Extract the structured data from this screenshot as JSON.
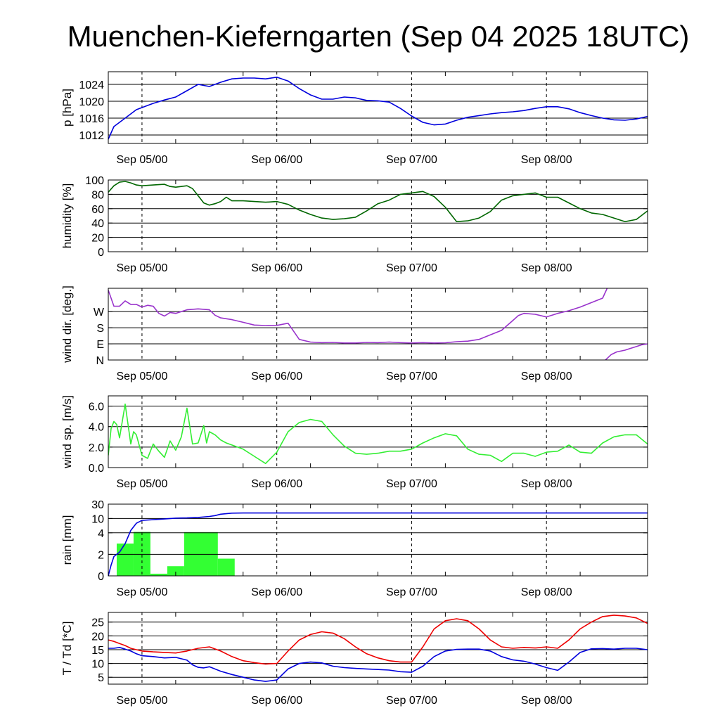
{
  "title": "Muenchen-Kieferngarten (Sep 04 2025 18UTC)",
  "colors": {
    "pressure": "#0000dd",
    "humidity": "#006600",
    "wind_dir": "#9933cc",
    "wind_speed": "#33ee33",
    "rain_bar": "#33ff33",
    "rain_cum": "#0000dd",
    "temperature": "#ee0000",
    "dewpoint": "#0000dd"
  },
  "chart_data": [
    {
      "type": "line",
      "ylabel": "p [hPa]",
      "x_unit": "hours after Sep 04 18UTC",
      "xlim": [
        0,
        96
      ],
      "ylim": [
        1010,
        1027
      ],
      "grid_values": [
        1012,
        1016,
        1020,
        1024
      ],
      "yticks": [
        {
          "v": 1012,
          "label": "1012"
        },
        {
          "v": 1016,
          "label": "1016"
        },
        {
          "v": 1020,
          "label": "1020"
        },
        {
          "v": 1024,
          "label": "1024"
        }
      ],
      "xtick_labels": [
        "Sep 05/00",
        "Sep 06/00",
        "Sep 07/00",
        "Sep 08/00"
      ],
      "series": [
        {
          "key": "pressure",
          "x": [
            0,
            1,
            2,
            3,
            4,
            5,
            6,
            8,
            10,
            12,
            14,
            16,
            18,
            20,
            22,
            24,
            26,
            28,
            30,
            32,
            34,
            36,
            38,
            40,
            42,
            44,
            46,
            48,
            50,
            52,
            54,
            56,
            58,
            60,
            62,
            64,
            66,
            68,
            70,
            72,
            74,
            76,
            78,
            80,
            82,
            84,
            86,
            88,
            90,
            92,
            94,
            96
          ],
          "y": [
            1011,
            1014,
            1015,
            1016,
            1017,
            1018,
            1018.5,
            1019.5,
            1020.3,
            1021,
            1022.5,
            1024,
            1023.5,
            1024.5,
            1025.3,
            1025.5,
            1025.5,
            1025.3,
            1025.7,
            1024.8,
            1023,
            1021.5,
            1020.5,
            1020.5,
            1021,
            1020.8,
            1020.2,
            1020.1,
            1019.8,
            1018.3,
            1016.5,
            1015,
            1014.4,
            1014.6,
            1015.5,
            1016.2,
            1016.6,
            1017,
            1017.3,
            1017.5,
            1017.8,
            1018.3,
            1018.7,
            1018.7,
            1018.2,
            1017.3,
            1016.6,
            1016,
            1015.6,
            1015.5,
            1015.8,
            1016.4
          ]
        }
      ]
    },
    {
      "type": "line",
      "ylabel": "humidity [%]",
      "x_unit": "hours after Sep 04 18UTC",
      "xlim": [
        0,
        96
      ],
      "ylim": [
        0,
        100
      ],
      "grid_values": [
        20,
        40,
        60,
        80
      ],
      "yticks": [
        {
          "v": 0,
          "label": "0"
        },
        {
          "v": 20,
          "label": "20"
        },
        {
          "v": 40,
          "label": "40"
        },
        {
          "v": 60,
          "label": "60"
        },
        {
          "v": 80,
          "label": "80"
        },
        {
          "v": 100,
          "label": "100"
        }
      ],
      "xtick_labels": [
        "Sep 05/00",
        "Sep 06/00",
        "Sep 07/00",
        "Sep 08/00"
      ],
      "series": [
        {
          "key": "humidity",
          "x": [
            0,
            1,
            2,
            3,
            4,
            5,
            6,
            8,
            10,
            11,
            12,
            14,
            15,
            16,
            17,
            18,
            19,
            20,
            21,
            22,
            24,
            26,
            28,
            30,
            32,
            34,
            36,
            38,
            40,
            42,
            44,
            46,
            48,
            50,
            52,
            54,
            55,
            56,
            58,
            60,
            62,
            64,
            66,
            68,
            70,
            72,
            74,
            76,
            78,
            80,
            82,
            84,
            86,
            88,
            90,
            92,
            94,
            96
          ],
          "y": [
            83,
            92,
            97,
            98,
            96,
            93,
            92,
            93,
            94,
            91,
            90,
            92,
            88,
            78,
            68,
            65,
            67,
            70,
            76,
            71,
            71,
            70,
            69,
            70,
            66,
            58,
            52,
            47,
            45,
            46,
            48,
            57,
            67,
            72,
            80,
            82,
            83,
            84,
            77,
            62,
            42,
            43,
            47,
            56,
            72,
            78,
            80,
            82,
            76,
            76,
            68,
            60,
            54,
            52,
            47,
            42,
            45,
            57
          ]
        }
      ]
    },
    {
      "type": "line",
      "ylabel": "wind dir. [deg.]",
      "x_unit": "hours after Sep 04 18UTC",
      "xlim": [
        0,
        96
      ],
      "ylim": [
        0,
        400
      ],
      "grid_values": [
        90,
        180,
        270
      ],
      "yticks": [
        {
          "v": 0,
          "label": "N"
        },
        {
          "v": 90,
          "label": "E"
        },
        {
          "v": 180,
          "label": "S"
        },
        {
          "v": 270,
          "label": "W"
        }
      ],
      "xtick_labels": [
        "Sep 05/00",
        "Sep 06/00",
        "Sep 07/00",
        "Sep 08/00"
      ],
      "series": [
        {
          "key": "wind_dir",
          "x": [
            0,
            1,
            2,
            3,
            4,
            5,
            6,
            7,
            8,
            9,
            10,
            11,
            12,
            14,
            16,
            18,
            19,
            20,
            22,
            24,
            26,
            28,
            30,
            32,
            34,
            36,
            38,
            40,
            42,
            44,
            46,
            48,
            50,
            52,
            54,
            56,
            58,
            60,
            62,
            64,
            66,
            68,
            70,
            72,
            73,
            74,
            76,
            78,
            80,
            82,
            84,
            86,
            88,
            88.8
          ],
          "y": [
            390,
            300,
            300,
            330,
            310,
            310,
            295,
            305,
            300,
            260,
            245,
            265,
            260,
            280,
            285,
            280,
            250,
            235,
            225,
            210,
            195,
            192,
            193,
            205,
            115,
            100,
            97,
            98,
            95,
            95,
            98,
            97,
            100,
            97,
            95,
            97,
            95,
            96,
            102,
            105,
            115,
            140,
            165,
            220,
            248,
            260,
            255,
            240,
            260,
            275,
            295,
            320,
            345,
            400
          ]
        },
        {
          "key": "wind_dir",
          "x": [
            88.5,
            89.5,
            90.5,
            92,
            93,
            94,
            95,
            96
          ],
          "y": [
            0,
            30,
            45,
            55,
            65,
            75,
            85,
            90
          ]
        }
      ]
    },
    {
      "type": "line",
      "ylabel": "wind sp. [m/s]",
      "x_unit": "hours after Sep 04 18UTC",
      "xlim": [
        0,
        96
      ],
      "ylim": [
        0,
        7
      ],
      "grid_values": [
        2,
        4,
        6
      ],
      "yticks": [
        {
          "v": 0,
          "label": "0.0"
        },
        {
          "v": 2,
          "label": "2.0"
        },
        {
          "v": 4,
          "label": "4.0"
        },
        {
          "v": 6,
          "label": "6.0"
        }
      ],
      "xtick_labels": [
        "Sep 05/00",
        "Sep 06/00",
        "Sep 07/00",
        "Sep 08/00"
      ],
      "series": [
        {
          "key": "wind_speed",
          "x": [
            0,
            0.5,
            1,
            1.5,
            2,
            3,
            4,
            4.5,
            5,
            6,
            7,
            8,
            9,
            10,
            11,
            12,
            13,
            14,
            15,
            16,
            17,
            17.5,
            18,
            19,
            20,
            21,
            22,
            24,
            26,
            28,
            30,
            32,
            34,
            36,
            38,
            40,
            42,
            44,
            46,
            48,
            50,
            52,
            54,
            56,
            58,
            60,
            62,
            64,
            66,
            68,
            70,
            72,
            74,
            76,
            78,
            80,
            82,
            84,
            86,
            88,
            90,
            92,
            94,
            96
          ],
          "y": [
            1.2,
            3.8,
            4.5,
            4.2,
            2.9,
            6.2,
            2.3,
            3.5,
            3.2,
            1.2,
            0.9,
            2.3,
            1.6,
            1,
            2.6,
            1.7,
            3,
            5.8,
            2.3,
            2.4,
            4.1,
            2.4,
            3.5,
            3.2,
            2.7,
            2.4,
            2.2,
            1.8,
            1.1,
            0.4,
            1.5,
            3.5,
            4.4,
            4.7,
            4.5,
            3.2,
            2.1,
            1.4,
            1.3,
            1.4,
            1.6,
            1.6,
            1.8,
            2.4,
            2.9,
            3.3,
            3.1,
            1.8,
            1.3,
            1.2,
            0.6,
            1.4,
            1.4,
            1.1,
            1.5,
            1.6,
            2.2,
            1.5,
            1.4,
            2.4,
            3,
            3.2,
            3.2,
            2.3
          ]
        }
      ]
    },
    {
      "type": "bar",
      "ylabel": "rain [mm]",
      "x_unit": "hours after Sep 04 18UTC",
      "xlim": [
        0,
        96
      ],
      "y_scale": "nonlinear",
      "grid_values": [
        2,
        4,
        10,
        30
      ],
      "yticks": [
        {
          "v": 0,
          "label": "0"
        },
        {
          "v": 2,
          "label": "2"
        },
        {
          "v": 4,
          "label": "4"
        },
        {
          "v": 10,
          "label": "10"
        },
        {
          "v": 30,
          "label": "30"
        }
      ],
      "ymap": {
        "v": [
          0,
          2,
          4,
          10,
          30
        ],
        "frac": [
          0,
          0.3,
          0.6,
          0.8,
          1
        ]
      },
      "xtick_labels": [
        "Sep 05/00",
        "Sep 06/00",
        "Sep 07/00",
        "Sep 08/00"
      ],
      "bars": [
        {
          "x0": 1.5,
          "x1": 4.5,
          "value": 3
        },
        {
          "x0": 4.5,
          "x1": 7.5,
          "value": 4.4
        },
        {
          "x0": 7.5,
          "x1": 10.5,
          "value": 0.2
        },
        {
          "x0": 10.5,
          "x1": 13.5,
          "value": 0.9
        },
        {
          "x0": 13.5,
          "x1": 19.5,
          "value": 4.3
        },
        {
          "x0": 19.5,
          "x1": 22.5,
          "value": 1.6
        }
      ],
      "series": [
        {
          "key": "rain_cum",
          "x": [
            0,
            0.5,
            1,
            1.5,
            2,
            3,
            4,
            5,
            6,
            8,
            10,
            12,
            14,
            16,
            18,
            19,
            20,
            22,
            24,
            30,
            40,
            60,
            80,
            96
          ],
          "y": [
            0,
            1,
            1.8,
            2,
            2.2,
            3,
            5,
            8,
            9.2,
            9.5,
            9.8,
            10.5,
            10.8,
            11.5,
            12.8,
            14,
            16,
            17.5,
            17.6,
            17.6,
            17.6,
            17.6,
            17.6,
            17.6
          ]
        }
      ]
    },
    {
      "type": "line",
      "ylabel": "T / Td [*C]",
      "x_unit": "hours after Sep 04 18UTC",
      "xlim": [
        0,
        96
      ],
      "ylim": [
        2.5,
        28.5
      ],
      "grid_values": [
        5,
        10,
        15,
        20,
        25
      ],
      "yticks": [
        {
          "v": 5,
          "label": "5"
        },
        {
          "v": 10,
          "label": "10"
        },
        {
          "v": 15,
          "label": "15"
        },
        {
          "v": 20,
          "label": "20"
        },
        {
          "v": 25,
          "label": "25"
        }
      ],
      "xtick_labels": [
        "Sep 05/00",
        "Sep 06/00",
        "Sep 07/00",
        "Sep 08/00"
      ],
      "series": [
        {
          "key": "temperature",
          "x": [
            0,
            1,
            2,
            3,
            4,
            5,
            6,
            8,
            10,
            12,
            14,
            16,
            18,
            20,
            22,
            24,
            26,
            28,
            30,
            32,
            34,
            36,
            38,
            40,
            42,
            44,
            46,
            48,
            50,
            52,
            54,
            56,
            58,
            60,
            62,
            64,
            66,
            68,
            70,
            72,
            74,
            76,
            78,
            80,
            82,
            84,
            86,
            88,
            90,
            92,
            94,
            96
          ],
          "y": [
            18.5,
            18,
            17.2,
            16.5,
            15.5,
            15,
            14.5,
            14.2,
            14,
            13.8,
            14.5,
            15.5,
            16,
            14.5,
            12.5,
            11,
            10.3,
            9.8,
            10,
            14.5,
            18.5,
            20.5,
            21.5,
            21,
            19,
            16,
            13.5,
            12,
            11,
            10.5,
            10.5,
            16,
            22.5,
            25.5,
            26.2,
            25.5,
            22.5,
            18.5,
            16,
            15.5,
            15.8,
            15.6,
            16,
            15.5,
            18.5,
            22.5,
            25,
            27,
            27.5,
            27.2,
            26.5,
            24.5
          ]
        },
        {
          "key": "dewpoint",
          "x": [
            0,
            1,
            2,
            3,
            4,
            5,
            6,
            8,
            10,
            12,
            14,
            15,
            16,
            17,
            18,
            20,
            22,
            24,
            26,
            28,
            30,
            32,
            34,
            36,
            38,
            40,
            42,
            44,
            46,
            48,
            50,
            52,
            54,
            56,
            58,
            60,
            62,
            64,
            66,
            68,
            70,
            72,
            74,
            76,
            78,
            80,
            82,
            84,
            86,
            88,
            90,
            92,
            94,
            96
          ],
          "y": [
            15.5,
            15.5,
            15.8,
            15.2,
            14.5,
            13.5,
            12.8,
            12.5,
            12,
            12.2,
            11.2,
            9.5,
            8.6,
            8.4,
            8.8,
            7.2,
            6,
            5,
            4,
            3.5,
            4,
            8,
            10,
            10.5,
            10.2,
            9,
            8.5,
            8.2,
            8,
            7.8,
            7.6,
            7,
            6.8,
            9,
            12.5,
            14.5,
            15.1,
            15.2,
            15.2,
            14.5,
            12.5,
            11.3,
            10.8,
            9.8,
            8.5,
            7.5,
            10.5,
            14,
            15.3,
            15.4,
            15.2,
            15.5,
            15.5,
            15
          ]
        }
      ]
    }
  ]
}
